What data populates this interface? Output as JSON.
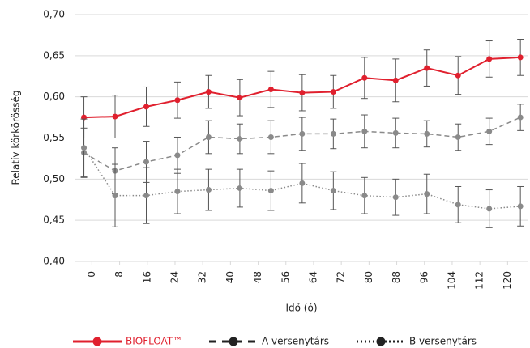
{
  "chart_data": {
    "type": "line",
    "xlabel": "Idő (ó)",
    "ylabel": "Relatív körkörösség",
    "x": [
      -2.3,
      6.7,
      15.7,
      24.7,
      33.7,
      42.7,
      51.7,
      60.7,
      69.7,
      78.7,
      87.7,
      96.7,
      105.7,
      114.7,
      123.7
    ],
    "xlim": [
      -5,
      126
    ],
    "xticks": [
      0,
      8,
      16,
      24,
      32,
      40,
      48,
      56,
      64,
      72,
      80,
      88,
      96,
      104,
      112,
      120
    ],
    "ylim": [
      0.4,
      0.7
    ],
    "yticks": [
      {
        "value": 0.4,
        "label": "0,40"
      },
      {
        "value": 0.45,
        "label": "0,45"
      },
      {
        "value": 0.5,
        "label": "0,50"
      },
      {
        "value": 0.55,
        "label": "0,55"
      },
      {
        "value": 0.6,
        "label": "0,60"
      },
      {
        "value": 0.65,
        "label": "0,65"
      },
      {
        "value": 0.7,
        "label": "0,70"
      }
    ],
    "grid": true,
    "legend": "bottom",
    "series": [
      {
        "name": "BIOFLOAT™",
        "color": "#e0202e",
        "dash": "solid",
        "values": [
          0.575,
          0.576,
          0.588,
          0.596,
          0.606,
          0.599,
          0.609,
          0.605,
          0.606,
          0.623,
          0.62,
          0.635,
          0.626,
          0.646,
          0.648
        ],
        "errors": [
          0.025,
          0.026,
          0.024,
          0.022,
          0.02,
          0.022,
          0.022,
          0.022,
          0.02,
          0.025,
          0.026,
          0.022,
          0.023,
          0.022,
          0.022
        ]
      },
      {
        "name": "A versenytárs",
        "color": "#8a8a8a",
        "dash": "dashed",
        "values": [
          0.532,
          0.51,
          0.521,
          0.529,
          0.551,
          0.549,
          0.551,
          0.555,
          0.555,
          0.558,
          0.556,
          0.555,
          0.551,
          0.558,
          0.575
        ],
        "errors": [
          0.03,
          0.028,
          0.025,
          0.022,
          0.02,
          0.018,
          0.02,
          0.02,
          0.018,
          0.02,
          0.018,
          0.016,
          0.016,
          0.016,
          0.016
        ]
      },
      {
        "name": "B versenytárs",
        "color": "#8a8a8a",
        "dash": "dotted",
        "values": [
          0.538,
          0.48,
          0.48,
          0.485,
          0.487,
          0.489,
          0.486,
          0.495,
          0.486,
          0.48,
          0.478,
          0.482,
          0.469,
          0.464,
          0.467
        ],
        "errors": [
          0.035,
          0.038,
          0.034,
          0.027,
          0.025,
          0.023,
          0.024,
          0.024,
          0.023,
          0.022,
          0.022,
          0.024,
          0.022,
          0.023,
          0.024
        ]
      }
    ]
  }
}
